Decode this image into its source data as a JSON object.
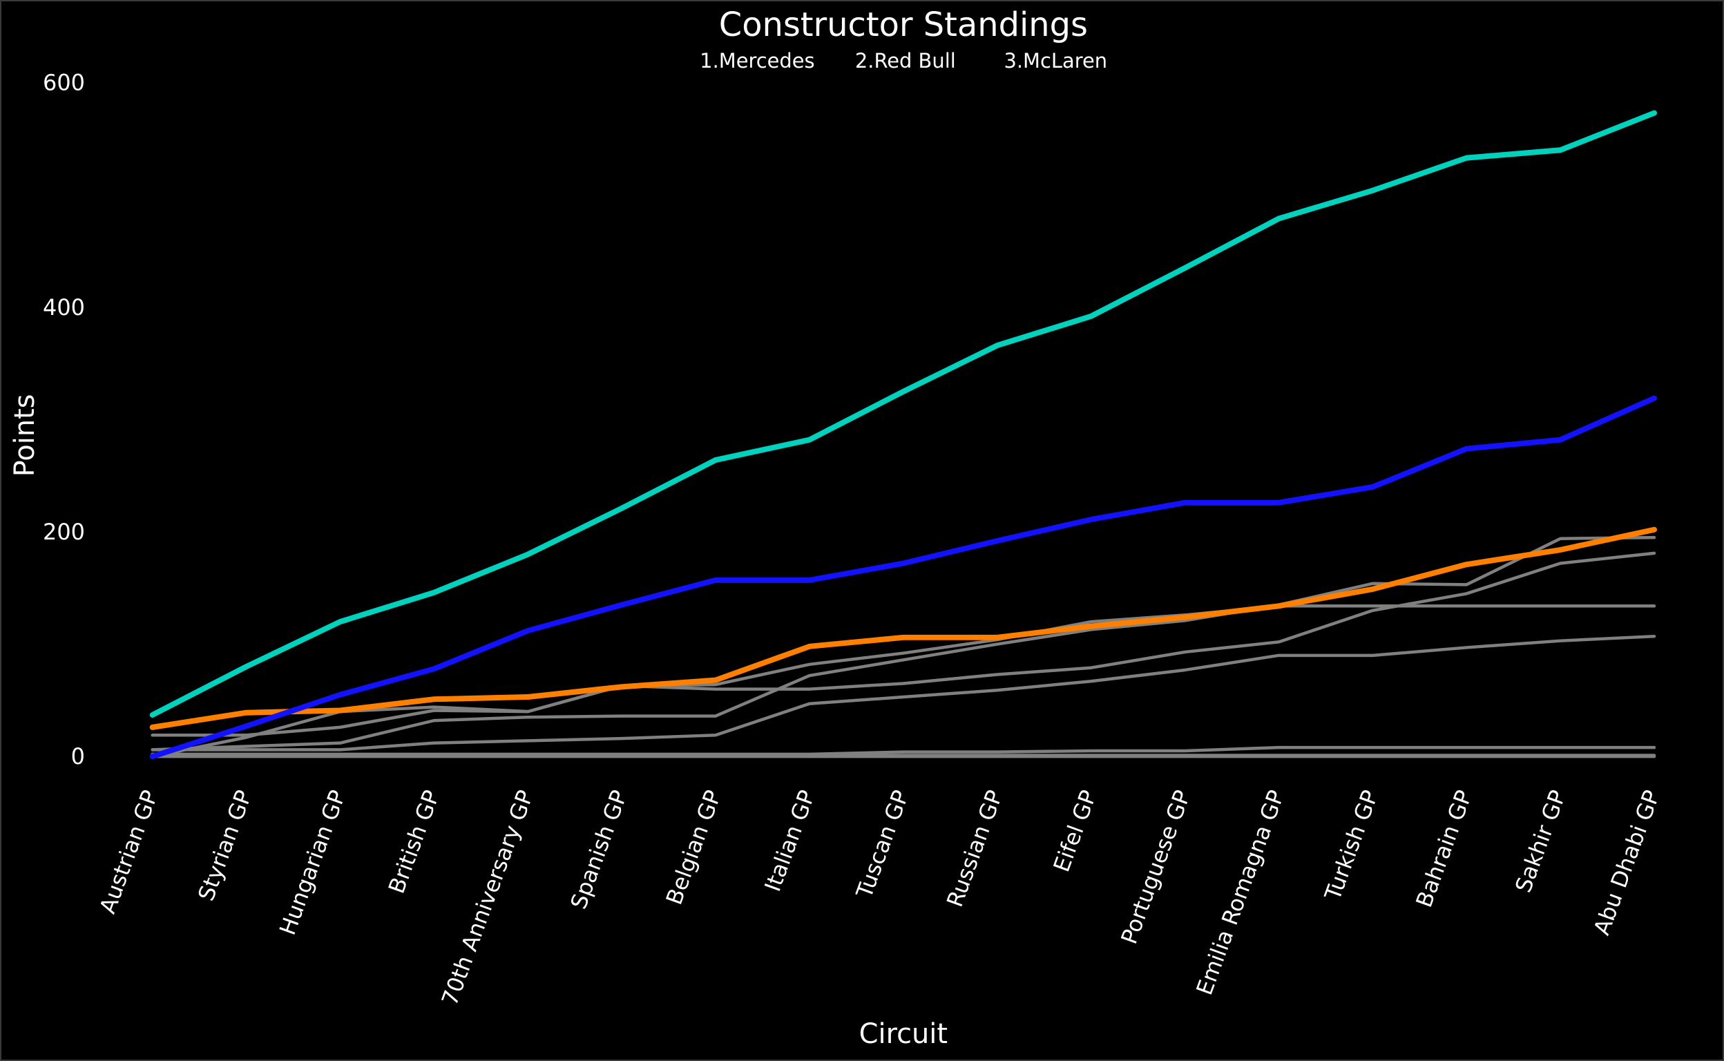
{
  "chart_data": {
    "type": "line",
    "title": "Constructor Standings",
    "subtitle": [
      "1.Mercedes",
      "2.Red Bull",
      "3.McLaren"
    ],
    "xlabel": "Circuit",
    "ylabel": "Points",
    "ylim": [
      -20,
      625
    ],
    "yticks": [
      0,
      200,
      400,
      600
    ],
    "grid": false,
    "background": "#000000",
    "categories": [
      "Austrian GP",
      "Styrian GP",
      "Hungarian GP",
      "British GP",
      "70th Anniversary GP",
      "Spanish GP",
      "Belgian GP",
      "Italian GP",
      "Tuscan GP",
      "Russian GP",
      "Eifel GP",
      "Portuguese GP",
      "Emilia Romagna GP",
      "Turkish GP",
      "Bahrain GP",
      "Sakhir GP",
      "Abu Dhabi GP"
    ],
    "series": [
      {
        "color": "#808080",
        "highlight": false,
        "values": [
          6,
          9,
          12,
          32,
          35,
          36,
          36,
          72,
          86,
          100,
          113,
          121,
          135,
          154,
          153,
          194,
          195
        ]
      },
      {
        "color": "#808080",
        "highlight": false,
        "values": [
          19,
          19,
          26,
          41,
          40,
          63,
          64,
          82,
          92,
          104,
          120,
          126,
          134,
          134,
          134,
          134,
          134
        ]
      },
      {
        "color": "#808080",
        "highlight": false,
        "values": [
          0,
          17,
          40,
          44,
          40,
          63,
          60,
          60,
          65,
          73,
          79,
          93,
          102,
          130,
          145,
          172,
          181
        ]
      },
      {
        "color": "#808080",
        "highlight": false,
        "values": [
          6,
          6,
          6,
          12,
          14,
          16,
          19,
          47,
          53,
          59,
          67,
          77,
          90,
          90,
          97,
          103,
          107
        ]
      },
      {
        "color": "#808080",
        "highlight": false,
        "values": [
          2,
          2,
          2,
          2,
          2,
          2,
          2,
          2,
          4,
          4,
          5,
          5,
          8,
          8,
          8,
          8,
          8
        ]
      },
      {
        "color": "#808080",
        "highlight": false,
        "values": [
          1,
          1,
          1,
          1,
          1,
          1,
          1,
          1,
          1,
          1,
          1,
          1,
          1,
          1,
          1,
          1,
          1
        ]
      },
      {
        "color": "#808080",
        "highlight": false,
        "values": [
          0,
          0,
          0,
          0,
          0,
          0,
          0,
          0,
          0,
          0,
          0,
          0,
          0,
          0,
          0,
          0,
          0
        ]
      },
      {
        "name": "McLaren",
        "color": "#FF8000",
        "highlight": true,
        "values": [
          26,
          39,
          41,
          51,
          53,
          62,
          68,
          98,
          106,
          106,
          116,
          124,
          134,
          149,
          171,
          184,
          202
        ]
      },
      {
        "name": "Red Bull",
        "color": "#1212FF",
        "highlight": true,
        "values": [
          0,
          27,
          55,
          78,
          112,
          135,
          157,
          157,
          172,
          192,
          211,
          226,
          226,
          240,
          274,
          282,
          319
        ]
      },
      {
        "name": "Mercedes",
        "color": "#00D2BE",
        "highlight": true,
        "values": [
          37,
          80,
          120,
          146,
          180,
          221,
          264,
          282,
          325,
          366,
          392,
          435,
          479,
          504,
          533,
          540,
          573
        ]
      }
    ]
  }
}
